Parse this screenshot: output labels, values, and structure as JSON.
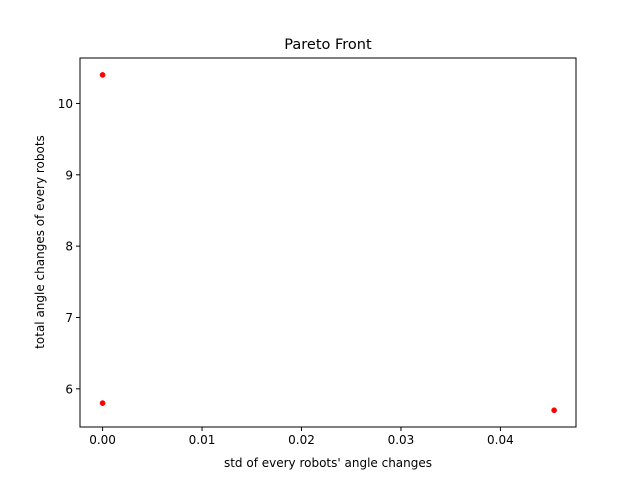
{
  "chart_data": {
    "type": "scatter",
    "title": "Pareto Front",
    "xlabel": "std of every robots' angle changes",
    "ylabel": "total angle changes of every robots",
    "xlim": [
      -0.00227,
      0.0476
    ],
    "ylim": [
      5.465,
      10.637
    ],
    "xticks": [
      {
        "value": 0.0,
        "label": "0.00"
      },
      {
        "value": 0.01,
        "label": "0.01"
      },
      {
        "value": 0.02,
        "label": "0.02"
      },
      {
        "value": 0.03,
        "label": "0.03"
      },
      {
        "value": 0.04,
        "label": "0.04"
      }
    ],
    "yticks": [
      {
        "value": 6,
        "label": "6"
      },
      {
        "value": 7,
        "label": "7"
      },
      {
        "value": 8,
        "label": "8"
      },
      {
        "value": 9,
        "label": "9"
      },
      {
        "value": 10,
        "label": "10"
      }
    ],
    "grid": false,
    "marker_color": "#ff0000",
    "points": [
      {
        "x": 0.0,
        "y": 10.4
      },
      {
        "x": 0.0,
        "y": 5.8
      },
      {
        "x": 0.0454,
        "y": 5.7
      }
    ]
  }
}
